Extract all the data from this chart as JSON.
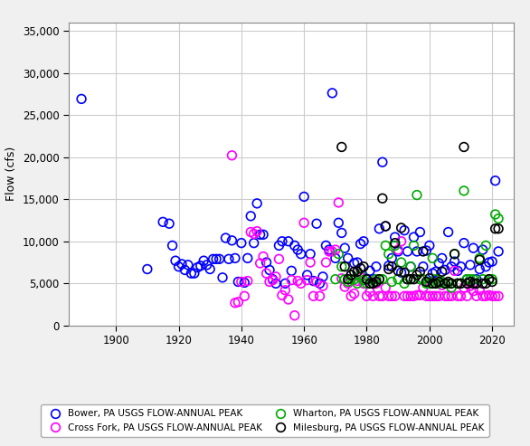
{
  "ylabel": "Flow (cfs)",
  "xlim": [
    1885,
    2027
  ],
  "ylim": [
    0,
    36000
  ],
  "yticks": [
    0,
    5000,
    10000,
    15000,
    20000,
    25000,
    30000,
    35000
  ],
  "xticks": [
    1900,
    1920,
    1940,
    1960,
    1980,
    2000,
    2020
  ],
  "background_color": "#f0f0f0",
  "plot_bg_color": "#ffffff",
  "grid_color": "#cccccc",
  "series": [
    {
      "name": "Bower, PA USGS FLOW-ANNUAL PEAK",
      "color": "#0000ff",
      "x": [
        1889,
        1910,
        1915,
        1917,
        1918,
        1919,
        1920,
        1921,
        1922,
        1923,
        1924,
        1925,
        1926,
        1927,
        1928,
        1929,
        1930,
        1931,
        1932,
        1933,
        1934,
        1935,
        1936,
        1937,
        1938,
        1939,
        1940,
        1941,
        1942,
        1943,
        1944,
        1945,
        1946,
        1947,
        1948,
        1949,
        1950,
        1951,
        1952,
        1953,
        1954,
        1955,
        1956,
        1957,
        1958,
        1959,
        1960,
        1961,
        1962,
        1963,
        1964,
        1965,
        1966,
        1967,
        1968,
        1969,
        1970,
        1971,
        1972,
        1973,
        1974,
        1975,
        1976,
        1977,
        1978,
        1979,
        1980,
        1981,
        1982,
        1983,
        1984,
        1985,
        1986,
        1987,
        1988,
        1989,
        1990,
        1991,
        1992,
        1993,
        1994,
        1995,
        1996,
        1997,
        1998,
        1999,
        2000,
        2001,
        2002,
        2003,
        2004,
        2005,
        2006,
        2007,
        2008,
        2009,
        2010,
        2011,
        2012,
        2013,
        2014,
        2015,
        2016,
        2017,
        2018,
        2019,
        2020,
        2021,
        2022
      ],
      "y": [
        26900,
        6700,
        12300,
        12100,
        9500,
        7700,
        7000,
        7300,
        6600,
        7200,
        6200,
        6200,
        6900,
        7100,
        7700,
        7200,
        6700,
        7900,
        7900,
        7900,
        5700,
        10400,
        7900,
        10100,
        8000,
        5200,
        9800,
        5100,
        8000,
        13000,
        9800,
        14500,
        10800,
        10800,
        7500,
        6600,
        5500,
        5000,
        9500,
        10000,
        5000,
        10000,
        6500,
        9500,
        9000,
        8500,
        15300,
        6000,
        8500,
        5300,
        12100,
        5000,
        5800,
        9500,
        9000,
        27600,
        8000,
        12200,
        11000,
        9200,
        8000,
        6000,
        7400,
        7500,
        9700,
        10000,
        5500,
        6500,
        5500,
        7000,
        11500,
        19400,
        11800,
        7100,
        8000,
        10500,
        8800,
        6300,
        11300,
        8800,
        7000,
        10500,
        8800,
        11100,
        7000,
        8900,
        9500,
        6200,
        6400,
        7400,
        8000,
        6600,
        11100,
        7000,
        7600,
        6500,
        7000,
        9800,
        5500,
        7200,
        9200,
        5500,
        6700,
        9000,
        7000,
        7500,
        7600,
        17200,
        8800
      ]
    },
    {
      "name": "Cross Fork, PA USGS FLOW-ANNUAL PEAK",
      "color": "#ff00ff",
      "x": [
        1937,
        1938,
        1939,
        1940,
        1941,
        1942,
        1943,
        1944,
        1945,
        1946,
        1947,
        1948,
        1949,
        1950,
        1951,
        1952,
        1953,
        1954,
        1955,
        1956,
        1957,
        1958,
        1959,
        1960,
        1961,
        1962,
        1963,
        1964,
        1965,
        1966,
        1967,
        1968,
        1969,
        1970,
        1971,
        1972,
        1973,
        1974,
        1975,
        1976,
        1977,
        1978,
        1979,
        1980,
        1981,
        1982,
        1983,
        1984,
        1985,
        1986,
        1987,
        1988,
        1989,
        1990,
        1991,
        1992,
        1993,
        1994,
        1995,
        1996,
        1997,
        1998,
        1999,
        2000,
        2001,
        2002,
        2003,
        2004,
        2005,
        2006,
        2007,
        2008,
        2009,
        2010,
        2011,
        2012,
        2013,
        2014,
        2015,
        2016,
        2017,
        2018,
        2019,
        2020,
        2021,
        2022
      ],
      "y": [
        20200,
        2700,
        2800,
        5200,
        3500,
        5300,
        11100,
        10900,
        11200,
        7400,
        8200,
        6200,
        5200,
        5400,
        5800,
        7900,
        3600,
        4200,
        3100,
        5400,
        1200,
        5300,
        5000,
        12200,
        5400,
        7500,
        3500,
        5200,
        3500,
        4700,
        7500,
        8800,
        8800,
        9000,
        14600,
        5600,
        4600,
        5000,
        3500,
        3800,
        5300,
        5700,
        5000,
        3500,
        4000,
        3500,
        5000,
        3500,
        3500,
        4500,
        3500,
        3500,
        3500,
        9000,
        10000,
        3500,
        3500,
        3500,
        3500,
        3600,
        3600,
        4500,
        3500,
        3500,
        3500,
        3500,
        3500,
        4800,
        3500,
        3500,
        3500,
        6500,
        3500,
        3500,
        4500,
        3500,
        4700,
        4100,
        3500,
        4200,
        3500,
        3500,
        3600,
        3500,
        3500,
        3500
      ]
    },
    {
      "name": "Wharton, PA USGS FLOW-ANNUAL PEAK",
      "color": "#00aa00",
      "x": [
        1970,
        1971,
        1972,
        1973,
        1974,
        1975,
        1976,
        1977,
        1978,
        1979,
        1980,
        1981,
        1982,
        1983,
        1984,
        1985,
        1986,
        1987,
        1988,
        1989,
        1990,
        1991,
        1992,
        1993,
        1994,
        1995,
        1996,
        1997,
        1998,
        1999,
        2000,
        2001,
        2002,
        2003,
        2004,
        2005,
        2006,
        2007,
        2008,
        2009,
        2010,
        2011,
        2012,
        2013,
        2014,
        2015,
        2016,
        2017,
        2018,
        2019,
        2020,
        2021,
        2022
      ],
      "y": [
        5500,
        8500,
        7000,
        5500,
        5200,
        5500,
        5500,
        5000,
        6000,
        5400,
        5000,
        5000,
        5000,
        5500,
        5500,
        5500,
        9500,
        8500,
        5200,
        9500,
        5500,
        7500,
        5000,
        5500,
        7000,
        9500,
        15500,
        5500,
        5500,
        5000,
        5000,
        8000,
        5500,
        5000,
        5200,
        5000,
        5000,
        4500,
        8500,
        5000,
        5000,
        16000,
        5500,
        5500,
        5500,
        5000,
        8000,
        5500,
        9500,
        5500,
        5500,
        13200,
        12700
      ]
    },
    {
      "name": "Milesburg, PA USGS FLOW-ANNUAL PEAK",
      "color": "#000000",
      "x": [
        1972,
        1973,
        1974,
        1975,
        1976,
        1977,
        1978,
        1979,
        1980,
        1981,
        1982,
        1983,
        1984,
        1985,
        1986,
        1987,
        1988,
        1989,
        1990,
        1991,
        1992,
        1993,
        1994,
        1995,
        1996,
        1997,
        1998,
        1999,
        2000,
        2001,
        2002,
        2003,
        2004,
        2005,
        2006,
        2007,
        2008,
        2009,
        2010,
        2011,
        2012,
        2013,
        2014,
        2015,
        2016,
        2017,
        2018,
        2019,
        2020,
        2021,
        2022
      ],
      "y": [
        21200,
        7000,
        5500,
        6000,
        6400,
        6400,
        6800,
        7000,
        5500,
        5000,
        5000,
        5200,
        5500,
        15100,
        11800,
        6700,
        7000,
        9800,
        6500,
        11600,
        6300,
        5500,
        5500,
        5500,
        6000,
        6400,
        8800,
        5200,
        5600,
        5000,
        5000,
        5200,
        6400,
        5000,
        5200,
        5000,
        8500,
        5000,
        5000,
        21200,
        5000,
        5200,
        5000,
        5000,
        7800,
        5000,
        5000,
        5500,
        5200,
        11500,
        11500
      ]
    }
  ]
}
